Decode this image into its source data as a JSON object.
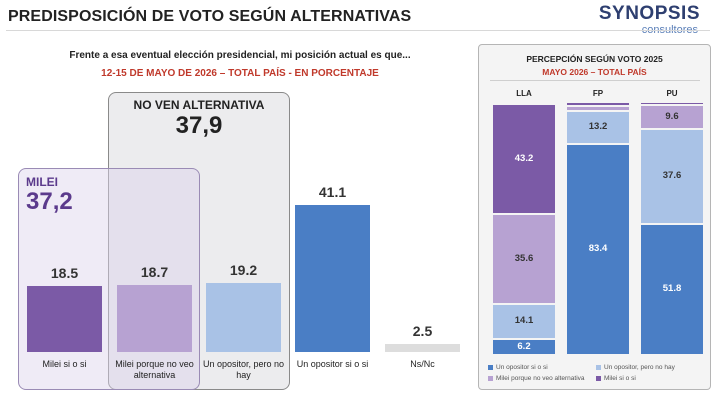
{
  "header": {
    "title": "PREDISPOSICIÓN DE VOTO SEGÚN ALTERNATIVAS",
    "brand_name": "SYNOPSIS",
    "brand_sub": "consultores"
  },
  "colors": {
    "milei_si_o_si": "#7b5aa6",
    "milei_porque": "#b7a2d2",
    "opositor_pero": "#a9c2e6",
    "opositor_si_o_si": "#4a7ec5",
    "nsnc": "#dddddd"
  },
  "chart_data": [
    {
      "type": "bar",
      "title": "Frente a esa eventual elección presidencial, mi posición actual es que...",
      "subtitle": "12-15 DE MAYO DE 2026 – TOTAL PAÍS - EN PORCENTAJE",
      "categories": [
        "Milei si o si",
        "Milei porque no veo alternativa",
        "Un opositor, pero no hay",
        "Un opositor si o si",
        "Ns/Nc"
      ],
      "values": [
        18.5,
        18.7,
        19.2,
        41.1,
        2.5
      ],
      "value_labels": [
        "18.5",
        "18.7",
        "19.2",
        "41.1",
        "2.5"
      ],
      "ylim": [
        0,
        45
      ],
      "groups": [
        {
          "label": "MILEI",
          "value": "37,2",
          "categories": [
            0,
            1
          ]
        },
        {
          "label": "NO VEN ALTERNATIVA",
          "value": "37,9",
          "categories": [
            1,
            2
          ]
        }
      ]
    },
    {
      "type": "bar",
      "stacked": true,
      "orientation": "vertical",
      "title": "PERCEPCIÓN SEGÚN VOTO 2025",
      "subtitle": "MAYO 2026 – TOTAL PAÍS",
      "categories": [
        "LLA",
        "FP",
        "PU"
      ],
      "series": [
        {
          "name": "Un opositor si o si",
          "values": [
            6.2,
            83.4,
            51.8
          ],
          "labels": [
            "6.2",
            "83.4",
            "51.8"
          ]
        },
        {
          "name": "Un opositor, pero no hay",
          "values": [
            14.1,
            13.2,
            37.6
          ],
          "labels": [
            "14.1",
            "13.2",
            "37.6"
          ]
        },
        {
          "name": "Milei porque no veo alternativa",
          "values": [
            35.6,
            1.7,
            9.6
          ],
          "labels": [
            "35.6",
            "",
            "9.6"
          ]
        },
        {
          "name": "Milei si o si",
          "values": [
            43.2,
            1.7,
            1.0
          ],
          "labels": [
            "43.2",
            "",
            ""
          ]
        }
      ],
      "ylim": [
        0,
        100
      ],
      "legend_position": "bottom"
    }
  ]
}
